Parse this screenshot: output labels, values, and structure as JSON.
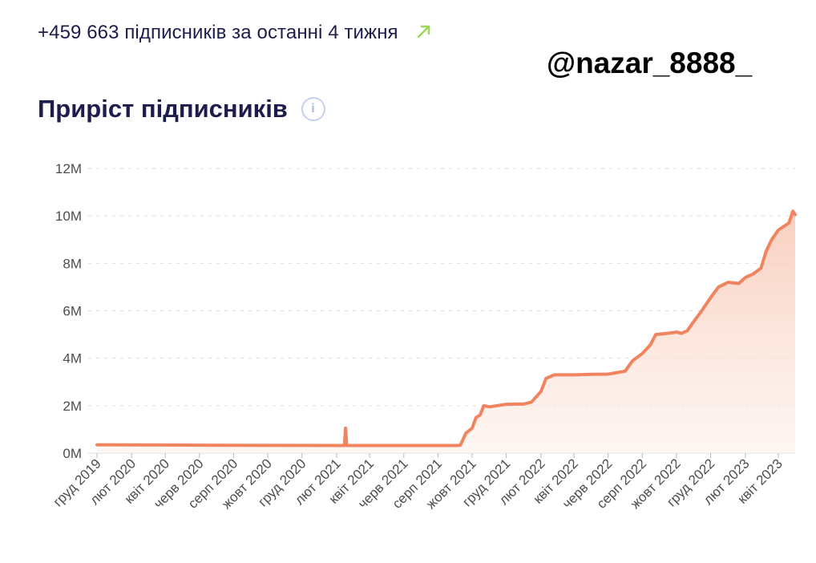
{
  "header": {
    "growth_text": "+459 663 підписників за останні 4 тижня",
    "trend_icon": "arrow-up-right-icon",
    "trend_color": "#9ad84e",
    "watermark": "@nazar_8888_"
  },
  "title": "Приріст підписників",
  "info_icon": "info-icon",
  "colors": {
    "line": "#f0845f",
    "fill_top": "#f7c6b3",
    "fill_bottom": "#fdf1ec",
    "grid": "#dddddd",
    "text": "#1c1d4c"
  },
  "chart_data": {
    "type": "area",
    "title": "Приріст підписників",
    "xlabel": "",
    "ylabel": "",
    "ylim": [
      0,
      12000000
    ],
    "yticks": [
      0,
      2000000,
      4000000,
      6000000,
      8000000,
      10000000,
      12000000
    ],
    "ytick_labels": [
      "0M",
      "2M",
      "4M",
      "6M",
      "8M",
      "10M",
      "12M"
    ],
    "xlim": [
      "2019-12-01",
      "2023-05-01"
    ],
    "xticks": [
      "2019-12-01",
      "2020-02-01",
      "2020-04-01",
      "2020-06-01",
      "2020-08-01",
      "2020-10-01",
      "2020-12-01",
      "2021-02-01",
      "2021-04-01",
      "2021-06-01",
      "2021-08-01",
      "2021-10-01",
      "2021-12-01",
      "2022-02-01",
      "2022-04-01",
      "2022-06-01",
      "2022-08-01",
      "2022-10-01",
      "2022-12-01",
      "2023-02-01",
      "2023-04-01"
    ],
    "xtick_labels": [
      "груд 2019",
      "лют 2020",
      "квіт 2020",
      "черв 2020",
      "серп 2020",
      "жовт 2020",
      "груд 2020",
      "лют 2021",
      "квіт 2021",
      "черв 2021",
      "серп 2021",
      "жовт 2021",
      "груд 2021",
      "лют 2022",
      "квіт 2022",
      "черв 2022",
      "серп 2022",
      "жовт 2022",
      "груд 2022",
      "лют 2023",
      "квіт 2023"
    ],
    "grid": true,
    "series": [
      {
        "points": [
          [
            "2019-12-01",
            350000
          ],
          [
            "2020-04-01",
            340000
          ],
          [
            "2020-08-01",
            330000
          ],
          [
            "2020-12-01",
            325000
          ],
          [
            "2021-02-15",
            320000
          ],
          [
            "2021-02-17",
            1050000
          ],
          [
            "2021-02-19",
            320000
          ],
          [
            "2021-06-01",
            320000
          ],
          [
            "2021-09-01",
            320000
          ],
          [
            "2021-09-10",
            330000
          ],
          [
            "2021-09-20",
            850000
          ],
          [
            "2021-10-01",
            1050000
          ],
          [
            "2021-10-08",
            1500000
          ],
          [
            "2021-10-15",
            1600000
          ],
          [
            "2021-10-22",
            2000000
          ],
          [
            "2021-11-01",
            1950000
          ],
          [
            "2021-11-15",
            2000000
          ],
          [
            "2021-12-01",
            2060000
          ],
          [
            "2022-01-01",
            2070000
          ],
          [
            "2022-01-15",
            2150000
          ],
          [
            "2022-02-01",
            2600000
          ],
          [
            "2022-02-10",
            3150000
          ],
          [
            "2022-02-25",
            3300000
          ],
          [
            "2022-04-01",
            3300000
          ],
          [
            "2022-05-01",
            3320000
          ],
          [
            "2022-06-01",
            3330000
          ],
          [
            "2022-07-01",
            3450000
          ],
          [
            "2022-07-15",
            3900000
          ],
          [
            "2022-08-01",
            4200000
          ],
          [
            "2022-08-15",
            4550000
          ],
          [
            "2022-08-25",
            5000000
          ],
          [
            "2022-09-15",
            5050000
          ],
          [
            "2022-10-01",
            5100000
          ],
          [
            "2022-10-10",
            5050000
          ],
          [
            "2022-10-20",
            5150000
          ],
          [
            "2022-11-01",
            5550000
          ],
          [
            "2022-11-15",
            6000000
          ],
          [
            "2022-12-01",
            6550000
          ],
          [
            "2022-12-15",
            7000000
          ],
          [
            "2023-01-01",
            7200000
          ],
          [
            "2023-01-20",
            7150000
          ],
          [
            "2023-02-01",
            7400000
          ],
          [
            "2023-02-15",
            7550000
          ],
          [
            "2023-03-01",
            7800000
          ],
          [
            "2023-03-10",
            8500000
          ],
          [
            "2023-03-20",
            9000000
          ],
          [
            "2023-04-01",
            9400000
          ],
          [
            "2023-04-20",
            9700000
          ],
          [
            "2023-04-27",
            10200000
          ],
          [
            "2023-05-01",
            10050000
          ]
        ]
      }
    ]
  }
}
